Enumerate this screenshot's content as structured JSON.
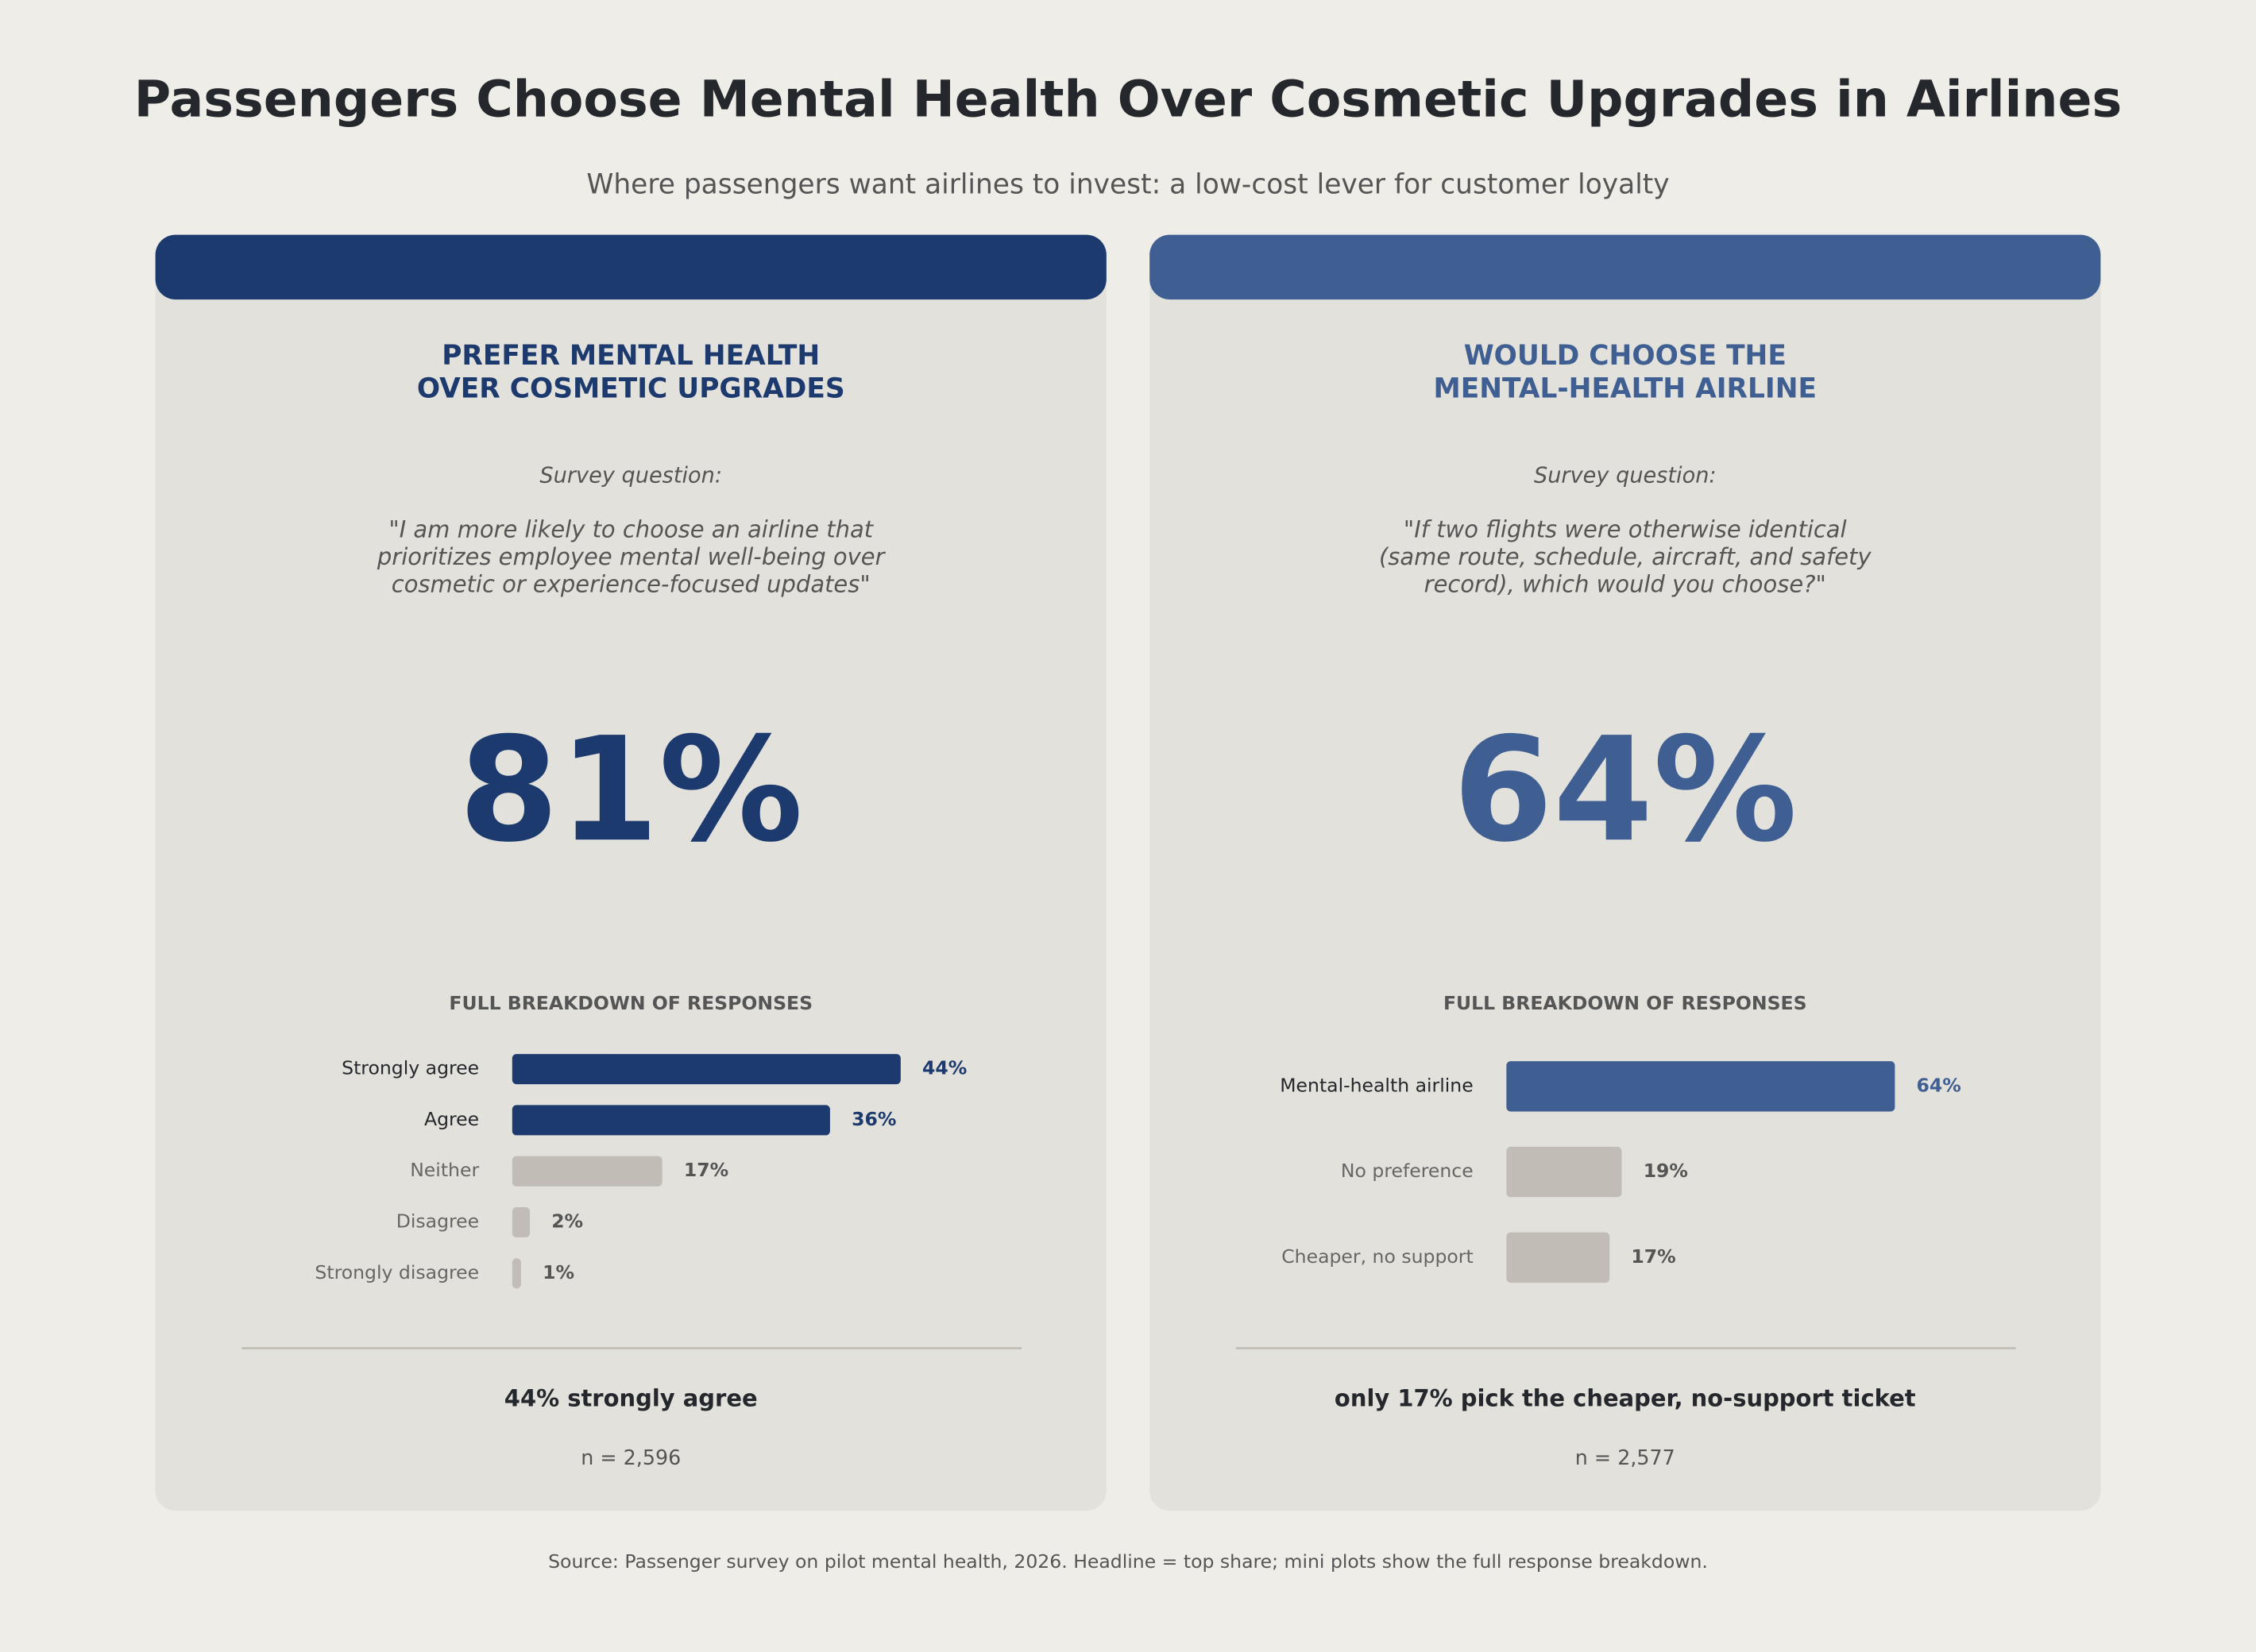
{
  "title": "Passengers Choose Mental Health Over Cosmetic Upgrades in Airlines",
  "subtitle": "Where passengers want airlines to invest: a low-cost lever for customer loyalty",
  "source": "Source: Passenger survey on pilot mental health, 2026.  Headline = top share; mini plots show the full response breakdown.",
  "panels": [
    {
      "accent": "#1c3a6e",
      "heading": [
        "PREFER MENTAL HEALTH",
        "OVER COSMETIC UPGRADES"
      ],
      "survey_label": "Survey question:",
      "question": [
        "\"I am more likely to choose an airline that",
        "prioritizes employee mental well-being over",
        "cosmetic or experience-focused updates\""
      ],
      "headline": "81%",
      "takeaway": "44% strongly agree",
      "n": "n = 2,596"
    },
    {
      "accent": "#3f5f92",
      "heading": [
        "WOULD CHOOSE THE",
        "MENTAL-HEALTH AIRLINE"
      ],
      "survey_label": "Survey question:",
      "question": [
        "\"If two flights were otherwise identical",
        "(same route, schedule, aircraft, and safety",
        "record), which would you choose?\""
      ],
      "headline": "64%",
      "takeaway": "only 17% pick the cheaper, no-support ticket",
      "n": "n = 2,577"
    }
  ],
  "chart_data": [
    {
      "type": "bar",
      "title": "FULL BREAKDOWN OF RESPONSES",
      "categories": [
        "Strongly agree",
        "Agree",
        "Neither",
        "Disagree",
        "Strongly disagree"
      ],
      "values": [
        44,
        36,
        17,
        2,
        1
      ],
      "value_labels": [
        "44%",
        "36%",
        "17%",
        "2%",
        "1%"
      ],
      "colors": [
        "#1c3a6e",
        "#1c3a6e",
        "#c1bdb6",
        "#c1bdb6",
        "#c1bdb6"
      ]
    },
    {
      "type": "bar",
      "title": "FULL BREAKDOWN OF RESPONSES",
      "categories": [
        "Mental-health airline",
        "No preference",
        "Cheaper, no support"
      ],
      "values": [
        64,
        19,
        17
      ],
      "value_labels": [
        "64%",
        "19%",
        "17%"
      ],
      "colors": [
        "#3f5f92",
        "#c1bdb6",
        "#c1bdb6"
      ]
    }
  ]
}
